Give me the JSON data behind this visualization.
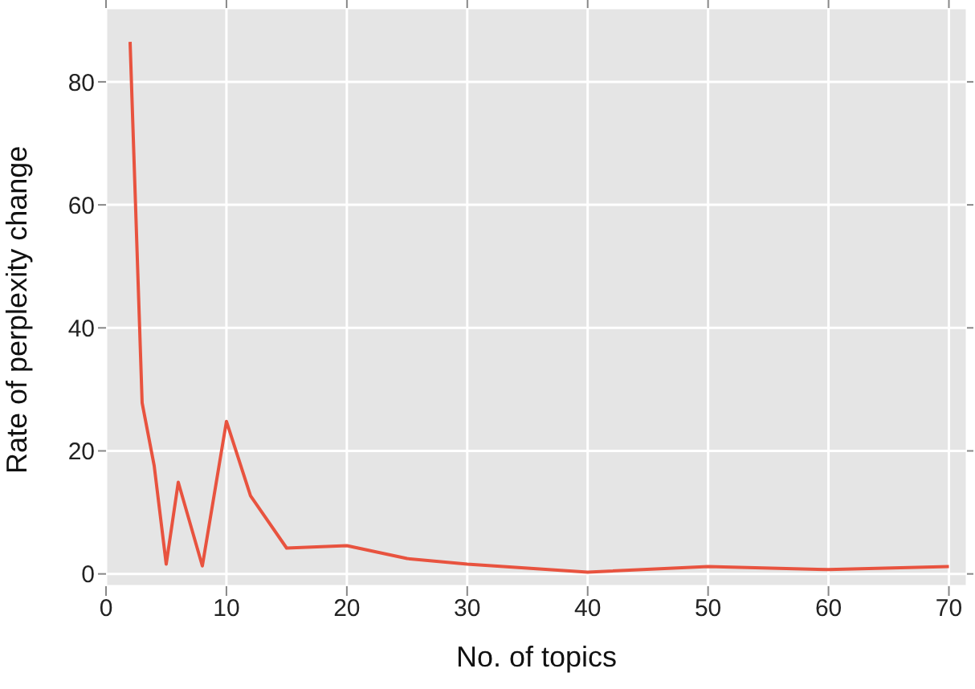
{
  "chart_data": {
    "type": "line",
    "xlabel": "No. of topics",
    "ylabel": "Rate of perplexity change",
    "x": [
      2,
      3,
      4,
      5,
      6,
      8,
      10,
      12,
      15,
      20,
      25,
      30,
      40,
      50,
      60,
      70
    ],
    "series": [
      {
        "color": "#e8533f",
        "values": [
          86.5,
          27.8,
          17.6,
          1.6,
          14.9,
          1.3,
          24.8,
          12.7,
          4.2,
          4.6,
          2.5,
          1.6,
          0.3,
          1.2,
          0.7,
          1.2
        ]
      }
    ],
    "xlim": [
      0,
      71.5
    ],
    "xticks": [
      0,
      10,
      20,
      30,
      40,
      50,
      60,
      70
    ],
    "ylim": [
      -2,
      92
    ],
    "yticks": [
      0,
      20,
      40,
      60,
      80
    ],
    "grid": true,
    "marker": "none",
    "line_style": "solid"
  }
}
